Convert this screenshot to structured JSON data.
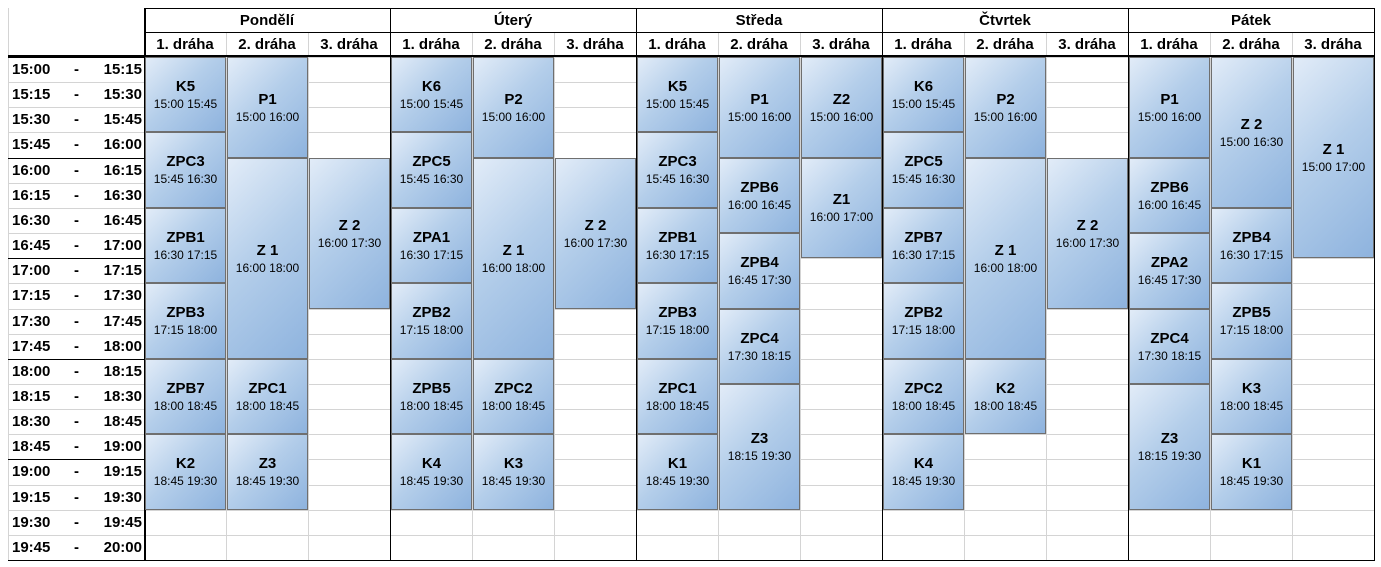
{
  "days": [
    {
      "name": "Pondělí",
      "lanes": [
        "1. dráha",
        "2. dráha",
        "3. dráha"
      ],
      "blocks": [
        {
          "name": "K5",
          "time": "15:00 15:45",
          "lane": 1,
          "start": "15:00",
          "end": "15:45"
        },
        {
          "name": "P1",
          "time": "15:00 16:00",
          "lane": 2,
          "start": "15:00",
          "end": "16:00"
        },
        {
          "name": "ZPC3",
          "time": "15:45 16:30",
          "lane": 1,
          "start": "15:45",
          "end": "16:30"
        },
        {
          "name": "ZPB1",
          "time": "16:30 17:15",
          "lane": 1,
          "start": "16:30",
          "end": "17:15"
        },
        {
          "name": "Z 1",
          "time": "16:00 18:00",
          "lane": 2,
          "start": "16:00",
          "end": "18:00"
        },
        {
          "name": "Z 2",
          "time": "16:00 17:30",
          "lane": 3,
          "start": "16:00",
          "end": "17:30"
        },
        {
          "name": "ZPB3",
          "time": "17:15 18:00",
          "lane": 1,
          "start": "17:15",
          "end": "18:00"
        },
        {
          "name": "ZPB7",
          "time": "18:00 18:45",
          "lane": 1,
          "start": "18:00",
          "end": "18:45"
        },
        {
          "name": "ZPC1",
          "time": "18:00 18:45",
          "lane": 2,
          "start": "18:00",
          "end": "18:45"
        },
        {
          "name": "K2",
          "time": "18:45 19:30",
          "lane": 1,
          "start": "18:45",
          "end": "19:30"
        },
        {
          "name": "Z3",
          "time": "18:45 19:30",
          "lane": 2,
          "start": "18:45",
          "end": "19:30"
        }
      ]
    },
    {
      "name": "Úterý",
      "lanes": [
        "1. dráha",
        "2. dráha",
        "3. dráha"
      ],
      "blocks": [
        {
          "name": "K6",
          "time": "15:00 15:45",
          "lane": 1,
          "start": "15:00",
          "end": "15:45"
        },
        {
          "name": "P2",
          "time": "15:00 16:00",
          "lane": 2,
          "start": "15:00",
          "end": "16:00"
        },
        {
          "name": "ZPC5",
          "time": "15:45 16:30",
          "lane": 1,
          "start": "15:45",
          "end": "16:30"
        },
        {
          "name": "ZPA1",
          "time": "16:30 17:15",
          "lane": 1,
          "start": "16:30",
          "end": "17:15"
        },
        {
          "name": "Z 1",
          "time": "16:00 18:00",
          "lane": 2,
          "start": "16:00",
          "end": "18:00"
        },
        {
          "name": "Z 2",
          "time": "16:00 17:30",
          "lane": 3,
          "start": "16:00",
          "end": "17:30"
        },
        {
          "name": "ZPB2",
          "time": "17:15 18:00",
          "lane": 1,
          "start": "17:15",
          "end": "18:00"
        },
        {
          "name": "ZPB5",
          "time": "18:00 18:45",
          "lane": 1,
          "start": "18:00",
          "end": "18:45"
        },
        {
          "name": "ZPC2",
          "time": "18:00 18:45",
          "lane": 2,
          "start": "18:00",
          "end": "18:45"
        },
        {
          "name": "K4",
          "time": "18:45 19:30",
          "lane": 1,
          "start": "18:45",
          "end": "19:30"
        },
        {
          "name": "K3",
          "time": "18:45 19:30",
          "lane": 2,
          "start": "18:45",
          "end": "19:30"
        }
      ]
    },
    {
      "name": "Středa",
      "lanes": [
        "1. dráha",
        "2. dráha",
        "3. dráha"
      ],
      "blocks": [
        {
          "name": "K5",
          "time": "15:00 15:45",
          "lane": 1,
          "start": "15:00",
          "end": "15:45"
        },
        {
          "name": "P1",
          "time": "15:00 16:00",
          "lane": 2,
          "start": "15:00",
          "end": "16:00"
        },
        {
          "name": "Z2",
          "time": "15:00 16:00",
          "lane": 3,
          "start": "15:00",
          "end": "16:00"
        },
        {
          "name": "ZPC3",
          "time": "15:45 16:30",
          "lane": 1,
          "start": "15:45",
          "end": "16:30"
        },
        {
          "name": "ZPB6",
          "time": "16:00 16:45",
          "lane": 2,
          "start": "16:00",
          "end": "16:45"
        },
        {
          "name": "Z1",
          "time": "16:00 17:00",
          "lane": 3,
          "start": "16:00",
          "end": "17:00"
        },
        {
          "name": "ZPB1",
          "time": "16:30 17:15",
          "lane": 1,
          "start": "16:30",
          "end": "17:15"
        },
        {
          "name": "ZPB4",
          "time": "16:45 17:30",
          "lane": 2,
          "start": "16:45",
          "end": "17:30"
        },
        {
          "name": "ZPB3",
          "time": "17:15 18:00",
          "lane": 1,
          "start": "17:15",
          "end": "18:00"
        },
        {
          "name": "ZPC4",
          "time": "17:30 18:15",
          "lane": 2,
          "start": "17:30",
          "end": "18:15"
        },
        {
          "name": "ZPC1",
          "time": "18:00 18:45",
          "lane": 1,
          "start": "18:00",
          "end": "18:45"
        },
        {
          "name": "Z3",
          "time": "18:15 19:30",
          "lane": 2,
          "start": "18:15",
          "end": "19:30"
        },
        {
          "name": "K1",
          "time": "18:45 19:30",
          "lane": 1,
          "start": "18:45",
          "end": "19:30"
        }
      ]
    },
    {
      "name": "Čtvrtek",
      "lanes": [
        "1. dráha",
        "2. dráha",
        "3. dráha"
      ],
      "blocks": [
        {
          "name": "K6",
          "time": "15:00 15:45",
          "lane": 1,
          "start": "15:00",
          "end": "15:45"
        },
        {
          "name": "P2",
          "time": "15:00 16:00",
          "lane": 2,
          "start": "15:00",
          "end": "16:00"
        },
        {
          "name": "ZPC5",
          "time": "15:45 16:30",
          "lane": 1,
          "start": "15:45",
          "end": "16:30"
        },
        {
          "name": "ZPB7",
          "time": "16:30 17:15",
          "lane": 1,
          "start": "16:30",
          "end": "17:15"
        },
        {
          "name": "Z 1",
          "time": "16:00 18:00",
          "lane": 2,
          "start": "16:00",
          "end": "18:00"
        },
        {
          "name": "Z 2",
          "time": "16:00 17:30",
          "lane": 3,
          "start": "16:00",
          "end": "17:30"
        },
        {
          "name": "ZPB2",
          "time": "17:15 18:00",
          "lane": 1,
          "start": "17:15",
          "end": "18:00"
        },
        {
          "name": "ZPC2",
          "time": "18:00 18:45",
          "lane": 1,
          "start": "18:00",
          "end": "18:45"
        },
        {
          "name": "K2",
          "time": "18:00 18:45",
          "lane": 2,
          "start": "18:00",
          "end": "18:45"
        },
        {
          "name": "K4",
          "time": "18:45 19:30",
          "lane": 1,
          "start": "18:45",
          "end": "19:30"
        }
      ]
    },
    {
      "name": "Pátek",
      "lanes": [
        "1. dráha",
        "2. dráha",
        "3. dráha"
      ],
      "blocks": [
        {
          "name": "P1",
          "time": "15:00 16:00",
          "lane": 1,
          "start": "15:00",
          "end": "16:00"
        },
        {
          "name": "Z 2",
          "time": "15:00 16:30",
          "lane": 2,
          "start": "15:00",
          "end": "16:30"
        },
        {
          "name": "Z 1",
          "time": "15:00 17:00",
          "lane": 3,
          "start": "15:00",
          "end": "17:00"
        },
        {
          "name": "ZPB6",
          "time": "16:00 16:45",
          "lane": 1,
          "start": "16:00",
          "end": "16:45"
        },
        {
          "name": "ZPB4",
          "time": "16:30 17:15",
          "lane": 2,
          "start": "16:30",
          "end": "17:15"
        },
        {
          "name": "ZPA2",
          "time": "16:45 17:30",
          "lane": 1,
          "start": "16:45",
          "end": "17:30"
        },
        {
          "name": "ZPB5",
          "time": "17:15 18:00",
          "lane": 2,
          "start": "17:15",
          "end": "18:00"
        },
        {
          "name": "ZPC4",
          "time": "17:30 18:15",
          "lane": 1,
          "start": "17:30",
          "end": "18:15"
        },
        {
          "name": "K3",
          "time": "18:00 18:45",
          "lane": 2,
          "start": "18:00",
          "end": "18:45"
        },
        {
          "name": "Z3",
          "time": "18:15 19:30",
          "lane": 1,
          "start": "18:15",
          "end": "19:30"
        },
        {
          "name": "K1",
          "time": "18:45 19:30",
          "lane": 2,
          "start": "18:45",
          "end": "19:30"
        }
      ]
    }
  ],
  "time_rows": [
    {
      "start": "15:00",
      "dash": "-",
      "end": "15:15"
    },
    {
      "start": "15:15",
      "dash": "-",
      "end": "15:30"
    },
    {
      "start": "15:30",
      "dash": "-",
      "end": "15:45"
    },
    {
      "start": "15:45",
      "dash": "-",
      "end": "16:00"
    },
    {
      "start": "16:00",
      "dash": "-",
      "end": "16:15"
    },
    {
      "start": "16:15",
      "dash": "-",
      "end": "16:30"
    },
    {
      "start": "16:30",
      "dash": "-",
      "end": "16:45"
    },
    {
      "start": "16:45",
      "dash": "-",
      "end": "17:00"
    },
    {
      "start": "17:00",
      "dash": "-",
      "end": "17:15"
    },
    {
      "start": "17:15",
      "dash": "-",
      "end": "17:30"
    },
    {
      "start": "17:30",
      "dash": "-",
      "end": "17:45"
    },
    {
      "start": "17:45",
      "dash": "-",
      "end": "18:00"
    },
    {
      "start": "18:00",
      "dash": "-",
      "end": "18:15"
    },
    {
      "start": "18:15",
      "dash": "-",
      "end": "18:30"
    },
    {
      "start": "18:30",
      "dash": "-",
      "end": "18:45"
    },
    {
      "start": "18:45",
      "dash": "-",
      "end": "19:00"
    },
    {
      "start": "19:00",
      "dash": "-",
      "end": "19:15"
    },
    {
      "start": "19:15",
      "dash": "-",
      "end": "19:30"
    },
    {
      "start": "19:30",
      "dash": "-",
      "end": "19:45"
    },
    {
      "start": "19:45",
      "dash": "-",
      "end": "20:00"
    }
  ],
  "colors": {
    "block_fill_light": "#e2ecf8",
    "block_fill_dark": "#8eb3de",
    "block_border": "#6f6f6f",
    "grid": "#d4d4d4",
    "border": "#000000"
  }
}
